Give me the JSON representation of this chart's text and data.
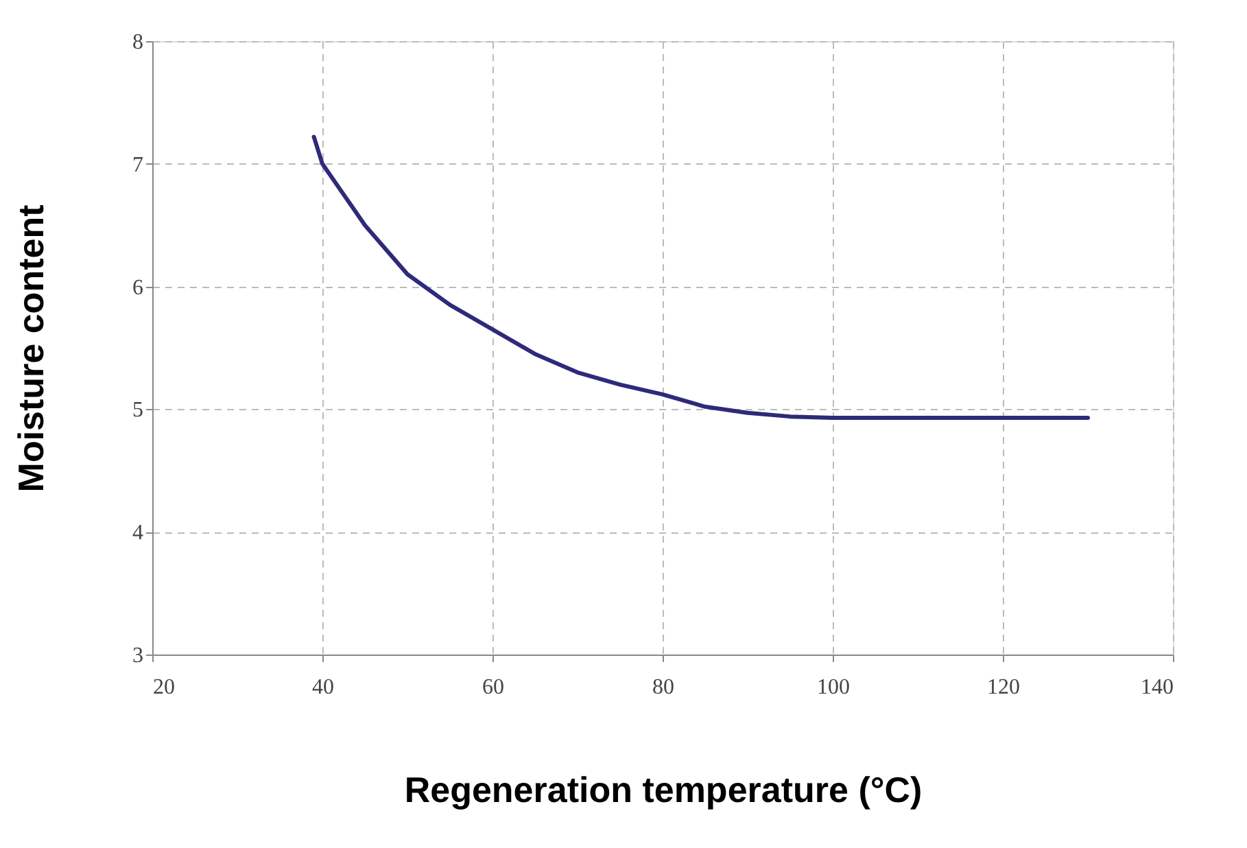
{
  "chart_data": {
    "type": "line",
    "xlabel": "Regeneration temperature (°C)",
    "ylabel": "Moisture content",
    "x": [
      39,
      40,
      45,
      50,
      55,
      60,
      65,
      70,
      75,
      80,
      85,
      90,
      95,
      100,
      110,
      120,
      130
    ],
    "series": [
      {
        "color": "#2e2a7a",
        "values": [
          7.22,
          7.0,
          6.5,
          6.1,
          5.85,
          5.65,
          5.45,
          5.3,
          5.2,
          5.12,
          5.02,
          4.97,
          4.94,
          4.93,
          4.93,
          4.93,
          4.93
        ]
      }
    ],
    "xlim": [
      20,
      140
    ],
    "xticks": [
      20,
      40,
      60,
      80,
      100,
      120,
      140
    ],
    "ylim": [
      3,
      8
    ],
    "yticks": [
      3,
      4,
      5,
      6,
      7,
      8
    ],
    "grid": true,
    "marker": "none",
    "line_style": "solid"
  }
}
